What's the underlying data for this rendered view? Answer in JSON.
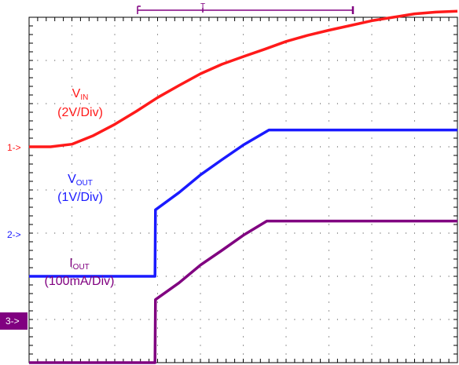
{
  "chart_data": {
    "type": "line",
    "title": "",
    "xlabel": "",
    "ylabel": "",
    "xlim": [
      0,
      10
    ],
    "ylim": [
      0,
      8
    ],
    "grid": true,
    "trigger_marker": "T",
    "series": [
      {
        "id": "vin",
        "label_main": "V",
        "label_sub": "IN",
        "scale": "(2V/Div)",
        "marker": "1->",
        "color": "#ff1a1a",
        "x": [
          0,
          0.5,
          1.0,
          1.5,
          2.0,
          2.5,
          3.0,
          3.5,
          4.0,
          4.5,
          5.0,
          5.5,
          6.0,
          6.5,
          7.0,
          7.5,
          8.0,
          8.5,
          9.0,
          9.5,
          10.0
        ],
        "y": [
          5.0,
          5.0,
          5.06,
          5.26,
          5.52,
          5.82,
          6.14,
          6.42,
          6.69,
          6.91,
          7.09,
          7.26,
          7.44,
          7.58,
          7.7,
          7.81,
          7.92,
          8.0,
          8.08,
          8.12,
          8.14
        ]
      },
      {
        "id": "vout",
        "label_main": "V",
        "label_sub": "OUT",
        "scale": "(1V/Div)",
        "marker": "2->",
        "color": "#1a1aff",
        "x": [
          0,
          1.0,
          2.0,
          2.94,
          2.95,
          3.5,
          4.0,
          4.5,
          5.0,
          5.6,
          6.0,
          7.0,
          8.0,
          9.0,
          10.0
        ],
        "y": [
          2.0,
          2.0,
          2.0,
          2.0,
          3.54,
          3.94,
          4.35,
          4.7,
          5.04,
          5.39,
          5.39,
          5.39,
          5.39,
          5.39,
          5.39
        ]
      },
      {
        "id": "iout",
        "label_main": "I",
        "label_sub": "OUT",
        "scale": "(100mA/Div)",
        "marker": "3->",
        "color": "#800080",
        "x": [
          0,
          1.0,
          2.0,
          2.94,
          2.95,
          3.5,
          4.0,
          4.5,
          5.0,
          5.55,
          6.0,
          7.0,
          8.0,
          9.0,
          10.0
        ],
        "y": [
          0.0,
          0.0,
          0.0,
          0.0,
          1.46,
          1.85,
          2.26,
          2.6,
          2.95,
          3.28,
          3.28,
          3.28,
          3.28,
          3.28,
          3.28
        ]
      }
    ]
  }
}
